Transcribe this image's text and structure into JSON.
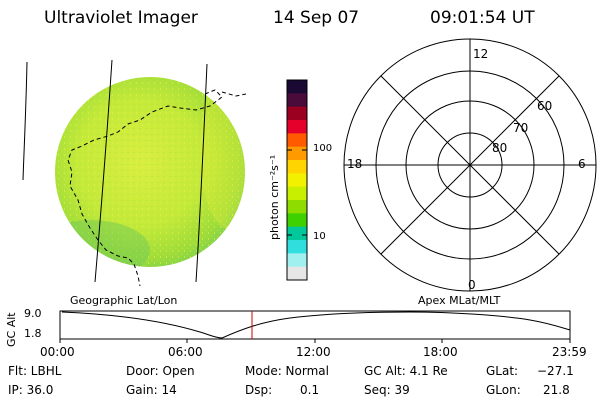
{
  "header": {
    "instrument": "Ultraviolet Imager",
    "date": "14 Sep 07",
    "time": "09:01:54 UT"
  },
  "colorbar": {
    "unit_label": "photon cm⁻²s⁻¹",
    "tick_labels": [
      "100",
      "10"
    ],
    "colors": [
      "#1a0a33",
      "#4a0a3a",
      "#9b0020",
      "#e4002b",
      "#ff5a00",
      "#ff9a00",
      "#ffd400",
      "#f2f200",
      "#c8ee00",
      "#8fdc00",
      "#3fd000",
      "#00c89a",
      "#30dede",
      "#a0f0f0",
      "#e6e6e6"
    ]
  },
  "left_panel": {
    "caption": "Geographic Lat/Lon"
  },
  "right_panel": {
    "caption": "Apex MLat/MLT",
    "mlt_labels": {
      "top": "12",
      "left": "18",
      "right": "6",
      "bottom": "0"
    },
    "mlat_labels": [
      "60",
      "70",
      "80"
    ]
  },
  "altitude_plot": {
    "ylabel": "GC Alt",
    "y_ticks": [
      "9.0",
      "1.8"
    ],
    "x_ticks": [
      "00:00",
      "06:00",
      "12:00",
      "18:00",
      "23:59"
    ],
    "marker_color": "#d00000"
  },
  "footer": {
    "filter_label": "Flt: LBHL",
    "ip_label": "IP: 36.0",
    "door_label": "Door: Open",
    "gain_label": "Gain: 14",
    "mode_label": "Mode: Normal",
    "dsp_label": "Dsp:",
    "dsp_value": "0.1",
    "gcalt_label": "GC Alt: 4.1 Re",
    "seq_label": "Seq: 39",
    "glat_label": "GLat:",
    "glat_value": "−27.1",
    "glon_label": "GLon:",
    "glon_value": "21.8"
  }
}
